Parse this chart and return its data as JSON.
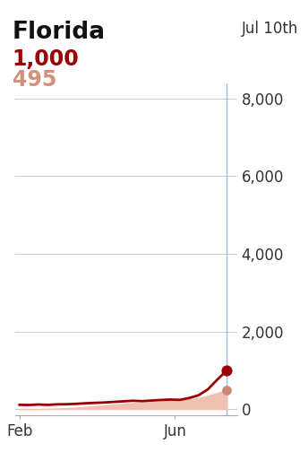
{
  "title": "Florida",
  "date_label": "Jul 10th",
  "legend_excess": "1,000",
  "legend_covid": "495",
  "legend_excess_color": "#9B0000",
  "legend_covid_color": "#D4907A",
  "line_color": "#9B0000",
  "fill_color": "#F0C0B0",
  "vline_color": "#8EB0C8",
  "dot_excess_color": "#9B0000",
  "dot_covid_color": "#CC8877",
  "ylabel_values": [
    0,
    2000,
    4000,
    6000,
    8000
  ],
  "ylim": [
    -150,
    8400
  ],
  "background_color": "#FFFFFF",
  "x_tick_labels": [
    "Feb",
    "Jun"
  ],
  "title_fontsize": 19,
  "date_label_fontsize": 12,
  "legend_excess_fontsize": 17,
  "legend_covid_fontsize": 17,
  "axis_fontsize": 12,
  "excess_manual": [
    110,
    105,
    118,
    108,
    122,
    125,
    135,
    150,
    160,
    170,
    185,
    200,
    215,
    205,
    220,
    235,
    245,
    238,
    285,
    355,
    510,
    760,
    1000
  ],
  "covid_manual": [
    0,
    0,
    0,
    5,
    12,
    22,
    35,
    55,
    75,
    95,
    115,
    135,
    155,
    165,
    178,
    205,
    222,
    232,
    255,
    282,
    345,
    415,
    495
  ]
}
